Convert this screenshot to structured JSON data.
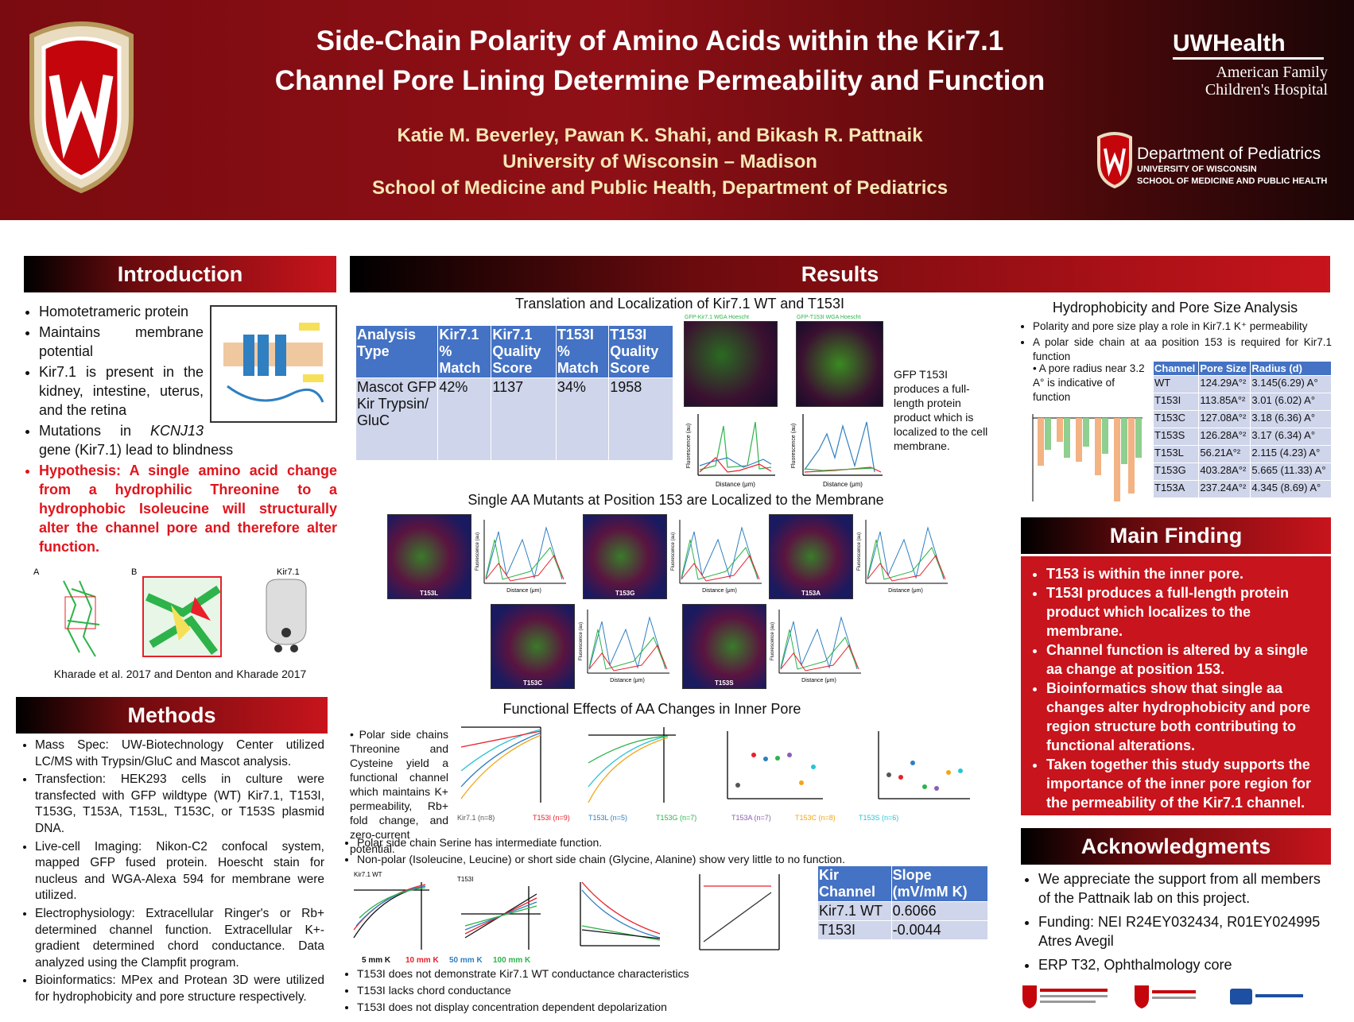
{
  "header": {
    "title_line_1": "Side-Chain Polarity of Amino Acids within the Kir7.1",
    "title_line_2": "Channel Pore Lining Determine Permeability and Function",
    "authors": "Katie M. Beverley, Pawan K. Shahi, and Bikash R. Pattnaik",
    "university": "University of Wisconsin – Madison",
    "school": "School of Medicine and Public Health, Department of Pediatrics",
    "uw_health": "UWHealth",
    "hospital_line_1": "American Family",
    "hospital_line_2": "Children's Hospital",
    "dept": "Department of Pediatrics",
    "dept_sub_1": "UNIVERSITY OF WISCONSIN",
    "dept_sub_2": "SCHOOL OF MEDICINE AND PUBLIC HEALTH"
  },
  "introduction": {
    "heading": "Introduction",
    "bullets": [
      "Homotetrameric protein",
      "Maintains membrane potential",
      "Kir7.1 is present in the kidney, intestine, uterus, and the retina"
    ],
    "mutation": {
      "pre": "Mutations in ",
      "gene": "KCNJ13",
      "post": " gene (Kir7.1) lead to blindness"
    },
    "hypothesis": "Hypothesis: A single amino acid change from a hydrophilic Threonine to a hydrophobic Isoleucine will structurally alter the channel pore and therefore alter function.",
    "panel_labels": [
      "A",
      "B",
      "Kir7.1"
    ],
    "citation": "Kharade et al. 2017 and Denton and Kharade 2017"
  },
  "methods": {
    "heading": "Methods",
    "bullets": [
      "Mass Spec: UW-Biotechnology Center utilized LC/MS with Trypsin/GluC and Mascot analysis.",
      "Transfection: HEK293 cells in culture were transfected with GFP wildtype (WT) Kir7.1, T153I, T153G, T153A, T153L, T153C, or T153S plasmid DNA.",
      "Live-cell Imaging: Nikon-C2 confocal system, mapped GFP fused protein. Hoescht stain for nucleus and WGA-Alexa 594 for membrane were utilized.",
      "Electrophysiology: Extracellular Ringer's or Rb+ determined channel function. Extracellular K+-gradient determined chord conductance. Data analyzed using the Clampfit program.",
      "Bioinformatics: MPex and Protean 3D were utilized for hydrophobicity and pore structure respectively."
    ]
  },
  "results": {
    "heading": "Results",
    "translation": {
      "title": "Translation and Localization of Kir7.1 WT and T153I",
      "table": {
        "header": [
          "Analysis Type",
          "Kir7.1 % Match",
          "Kir7.1 Quality Score",
          "T153I % Match",
          "T153I Quality Score"
        ],
        "rows": [
          [
            "Mascot GFP Kir Trypsin/ GluC",
            "42%",
            1137,
            "34%",
            1958
          ]
        ]
      },
      "image_labels": [
        "GFP-Kir7.1 WGA Hoescht",
        "GFP-T153I WGA Hoescht"
      ],
      "axis_x": "Distance (μm)",
      "axis_y": "Fluorescence (au)",
      "caption": "GFP T153I produces a full-length protein product which is localized to the cell membrane."
    },
    "mutants": {
      "title": "Single AA Mutants at Position 153 are Localized to the Membrane",
      "panels": [
        "T153L",
        "T153G",
        "T153A",
        "T153C",
        "T153S"
      ]
    },
    "functional": {
      "title": "Functional Effects of AA Changes in Inner Pore",
      "side_text": "Polar side chains Threonine and Cysteine yield a functional channel which maintains K+ permeability, Rb+ fold change, and zero-current potential.",
      "legend": [
        {
          "name": "Kir7.1 (n=8)",
          "color": "#555555"
        },
        {
          "name": "T153I (n=9)",
          "color": "#e8202a"
        },
        {
          "name": "T153L (n=5)",
          "color": "#2f7fc1"
        },
        {
          "name": "T153G (n=7)",
          "color": "#2db34a"
        },
        {
          "name": "T153A (n=7)",
          "color": "#8a5fb5"
        },
        {
          "name": "T153C (n=8)",
          "color": "#f2a516"
        },
        {
          "name": "T153S (n=6)",
          "color": "#27c4d6"
        }
      ],
      "bullets": [
        "Polar side chain Serine has intermediate function.",
        "Non-polar (Isoleucine, Leucine) or short side chain (Glycine, Alanine) show very little to no function."
      ],
      "plot_titles": [
        "Kir7.1 WT",
        "T153I"
      ],
      "concentrations": [
        {
          "name": "5 mm K",
          "color": "#111111"
        },
        {
          "name": "10 mm K",
          "color": "#e8202a"
        },
        {
          "name": "50 mm K",
          "color": "#2f7fc1"
        },
        {
          "name": "100 mm K",
          "color": "#2db34a"
        }
      ],
      "slope_table": {
        "header": [
          "Kir Channel",
          "Slope (mV/mM K)"
        ],
        "rows": [
          [
            "Kir7.1 WT",
            0.6066
          ],
          [
            "T153I",
            -0.0044
          ]
        ]
      },
      "bottom_bullets": [
        "T153I does not demonstrate Kir7.1 WT conductance characteristics",
        "T153I lacks chord conductance",
        "T153I does not display concentration dependent depolarization"
      ]
    },
    "hydrophobicity": {
      "title": "Hydrophobicity and Pore Size Analysis",
      "bullets": [
        "Polarity and pore size play a role in Kir7.1 K⁺ permeability",
        "A polar side chain at aa position 153 is required for Kir7.1 function"
      ],
      "radius_note": "A pore radius near 3.2 A° is indicative of function",
      "table": {
        "header": [
          "Channel",
          "Pore Size",
          "Radius (d)"
        ],
        "rows": [
          [
            "WT",
            "124.29A°²",
            "3.145(6.29) A°"
          ],
          [
            "T153I",
            "113.85A°²",
            "3.01 (6.02) A°"
          ],
          [
            "T153C",
            "127.08A°²",
            "3.18 (6.36) A°"
          ],
          [
            "T153S",
            "126.28A°²",
            "3.17 (6.34) A°"
          ],
          [
            "T153L",
            "56.21A°²",
            "2.115 (4.23) A°"
          ],
          [
            "T153G",
            "403.28A°²",
            "5.665 (11.33) A°"
          ],
          [
            "T153A",
            "237.24A°²",
            "4.345 (8.69) A°"
          ]
        ]
      }
    }
  },
  "main_finding": {
    "heading": "Main Finding",
    "bullets": [
      "T153 is within the inner pore.",
      "T153I produces a full-length protein product which localizes to the membrane.",
      "Channel function is altered by a single aa change at position 153.",
      "Bioinformatics show that single aa changes alter hydrophobicity and pore region structure both contributing to functional alterations.",
      "Taken together this study supports the importance of the inner pore region for the permeability of the Kir7.1 channel."
    ]
  },
  "acknowledgments": {
    "heading": "Acknowledgments",
    "bullets": [
      "We appreciate the support from all members of the Pattnaik lab on this project.",
      "Funding: NEI R24EY032434, R01EY024995 Atres Avegil",
      "ERP T32, Ophthalmology core"
    ]
  }
}
